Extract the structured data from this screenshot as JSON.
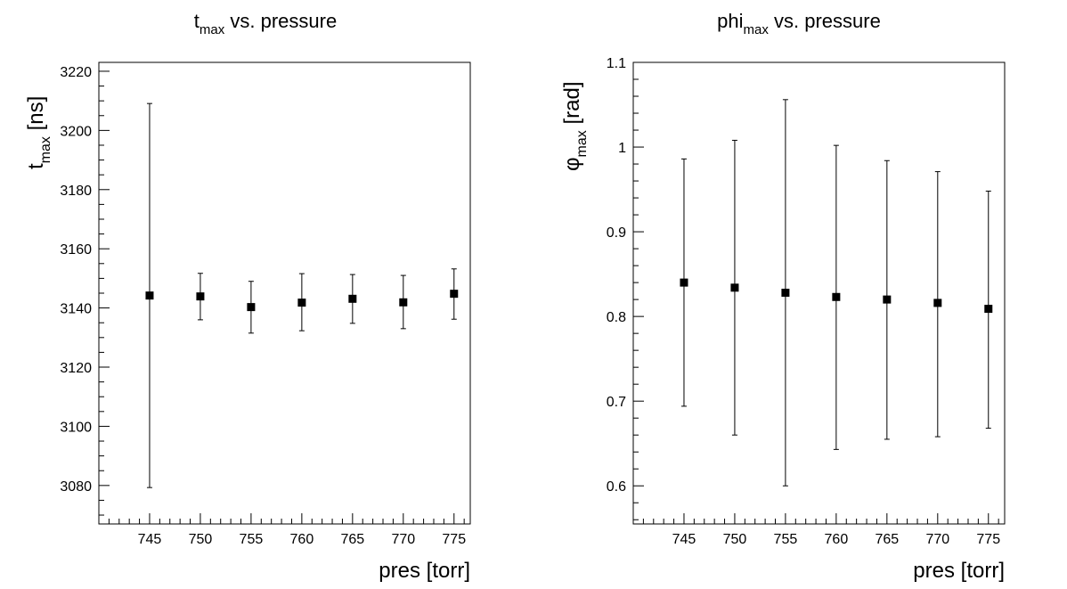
{
  "chart_data": [
    {
      "type": "scatter",
      "title": "t",
      "title_sub": "max",
      "title_rest": " vs. pressure",
      "xlabel": "pres [torr]",
      "ylabel": "t",
      "ylabel_sub": "max",
      "ylabel_rest": " [ns]",
      "xlim": [
        740,
        776.6
      ],
      "ylim": [
        3067,
        3223
      ],
      "x_ticks": [
        745,
        750,
        755,
        760,
        765,
        770,
        775
      ],
      "x_tick_labels": [
        "745",
        "750",
        "755",
        "760",
        "765",
        "770",
        "775"
      ],
      "y_ticks": [
        3080,
        3100,
        3120,
        3140,
        3160,
        3180,
        3200,
        3220
      ],
      "y_tick_labels": [
        "3080",
        "3100",
        "3120",
        "3140",
        "3160",
        "3180",
        "3200",
        "3220"
      ],
      "grid": false,
      "legend": "none",
      "marker": "square",
      "series": [
        {
          "x": [
            745,
            750,
            755,
            760,
            765,
            770,
            775
          ],
          "y": [
            3144.2,
            3143.9,
            3140.3,
            3141.8,
            3143.1,
            3141.9,
            3144.8
          ],
          "yerr_low": [
            3079.3,
            3136.0,
            3131.5,
            3132.3,
            3134.8,
            3133.0,
            3136.2
          ],
          "yerr_high": [
            3209.1,
            3151.7,
            3149.0,
            3151.6,
            3151.3,
            3151.0,
            3153.2
          ]
        }
      ]
    },
    {
      "type": "scatter",
      "title": "phi",
      "title_sub": "max",
      "title_rest": " vs. pressure",
      "xlabel": "pres [torr]",
      "ylabel": "φ",
      "ylabel_sub": "max",
      "ylabel_rest": " [rad]",
      "xlim": [
        740,
        776.6
      ],
      "ylim": [
        0.555,
        1.1
      ],
      "x_ticks": [
        745,
        750,
        755,
        760,
        765,
        770,
        775
      ],
      "x_tick_labels": [
        "745",
        "750",
        "755",
        "760",
        "765",
        "770",
        "775"
      ],
      "y_ticks": [
        0.6,
        0.7,
        0.8,
        0.9,
        1.0,
        1.1
      ],
      "y_tick_labels": [
        "0.6",
        "0.7",
        "0.8",
        "0.9",
        "1",
        "1.1"
      ],
      "grid": false,
      "legend": "none",
      "marker": "square",
      "series": [
        {
          "x": [
            745,
            750,
            755,
            760,
            765,
            770,
            775
          ],
          "y": [
            0.84,
            0.834,
            0.828,
            0.823,
            0.82,
            0.816,
            0.809
          ],
          "yerr_low": [
            0.694,
            0.66,
            0.6,
            0.643,
            0.655,
            0.658,
            0.668
          ],
          "yerr_high": [
            0.986,
            1.008,
            1.056,
            1.002,
            0.984,
            0.971,
            0.948
          ]
        }
      ]
    }
  ]
}
